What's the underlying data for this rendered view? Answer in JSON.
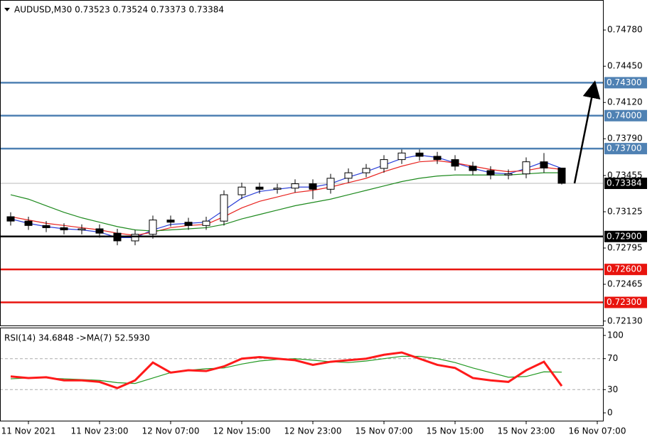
{
  "chart_data": [
    {
      "type": "candlestick",
      "title": "AUDUSD,M30  0.73523 0.73524 0.73373 0.73384",
      "xlim": [
        -0.6,
        33.32
      ],
      "ylim": [
        0.7209,
        0.7504
      ],
      "yticks": [
        {
          "value": 0.7478,
          "label": "0.74780"
        },
        {
          "value": 0.7445,
          "label": "0.74450"
        },
        {
          "value": 0.7412,
          "label": "0.74120"
        },
        {
          "value": 0.7379,
          "label": "0.73790"
        },
        {
          "value": 0.73455,
          "label": "0.73455"
        },
        {
          "value": 0.73125,
          "label": "0.73125"
        },
        {
          "value": 0.72795,
          "label": "0.72795"
        },
        {
          "value": 0.72465,
          "label": "0.72465"
        },
        {
          "value": 0.7213,
          "label": "0.72130"
        }
      ],
      "open": [
        0.7308,
        0.7304,
        0.73,
        0.7298,
        0.7296,
        0.7297,
        0.7293,
        0.7286,
        0.7292,
        0.7305,
        0.7303,
        0.73,
        0.7304,
        0.7328,
        0.7335,
        0.7333,
        0.7334,
        0.7338,
        0.7333,
        0.7343,
        0.7348,
        0.7352,
        0.736,
        0.7366,
        0.7363,
        0.736,
        0.7354,
        0.735,
        0.7346,
        0.7347,
        0.7358,
        0.73523
      ],
      "high": [
        0.7312,
        0.7308,
        0.7304,
        0.7302,
        0.7301,
        0.7301,
        0.7297,
        0.7296,
        0.7309,
        0.7309,
        0.7307,
        0.7308,
        0.7332,
        0.7339,
        0.7339,
        0.7338,
        0.7342,
        0.7342,
        0.7347,
        0.7352,
        0.7356,
        0.7364,
        0.737,
        0.737,
        0.7367,
        0.7364,
        0.7358,
        0.7354,
        0.7351,
        0.7362,
        0.7366,
        0.73524
      ],
      "low": [
        0.73,
        0.7296,
        0.7294,
        0.7292,
        0.7292,
        0.7289,
        0.7282,
        0.7282,
        0.7288,
        0.7299,
        0.7296,
        0.7296,
        0.73,
        0.7324,
        0.7329,
        0.7329,
        0.733,
        0.7324,
        0.7329,
        0.7339,
        0.7344,
        0.7348,
        0.7356,
        0.7359,
        0.7356,
        0.735,
        0.7346,
        0.7342,
        0.7342,
        0.7343,
        0.7348,
        0.73373
      ],
      "close": [
        0.7304,
        0.73,
        0.7298,
        0.7296,
        0.7297,
        0.7293,
        0.7286,
        0.7292,
        0.7305,
        0.7303,
        0.73,
        0.7304,
        0.7328,
        0.7335,
        0.7333,
        0.7334,
        0.7338,
        0.7333,
        0.7343,
        0.7348,
        0.7352,
        0.736,
        0.7366,
        0.7363,
        0.736,
        0.7354,
        0.735,
        0.7346,
        0.7347,
        0.7358,
        0.73523,
        0.73384
      ],
      "up_color": "#ffffff",
      "down_color": "#000000",
      "series": [
        {
          "color": "#2b3fd8",
          "values": [
            0.7306,
            0.7302,
            0.7299,
            0.7297,
            0.7296,
            0.7294,
            0.7289,
            0.7289,
            0.7296,
            0.7301,
            0.7302,
            0.7303,
            0.7314,
            0.7325,
            0.7331,
            0.7333,
            0.7335,
            0.7335,
            0.7338,
            0.7344,
            0.7349,
            0.7355,
            0.7361,
            0.7364,
            0.7362,
            0.7357,
            0.7352,
            0.7348,
            0.7347,
            0.7352,
            0.7358,
            0.7352
          ]
        },
        {
          "color": "#e8231f",
          "values": [
            0.7308,
            0.7305,
            0.7302,
            0.73,
            0.7298,
            0.7296,
            0.7293,
            0.7291,
            0.7294,
            0.7298,
            0.73,
            0.7301,
            0.7308,
            0.7316,
            0.7322,
            0.7326,
            0.733,
            0.7332,
            0.7335,
            0.7339,
            0.7343,
            0.7349,
            0.7354,
            0.7358,
            0.7359,
            0.7357,
            0.7354,
            0.7351,
            0.7349,
            0.735,
            0.7353,
            0.7351
          ]
        },
        {
          "color": "#1e8a1e",
          "values": [
            0.7328,
            0.7324,
            0.7318,
            0.7312,
            0.7307,
            0.7303,
            0.7299,
            0.7296,
            0.7295,
            0.7296,
            0.7297,
            0.7298,
            0.7301,
            0.7306,
            0.731,
            0.7314,
            0.7318,
            0.7321,
            0.7324,
            0.7328,
            0.7332,
            0.7336,
            0.734,
            0.7343,
            0.7345,
            0.7346,
            0.7346,
            0.7346,
            0.7346,
            0.7347,
            0.7348,
            0.7348
          ]
        }
      ],
      "levels": [
        {
          "value": 0.743,
          "label": "0.74300",
          "color": "#4f81b3"
        },
        {
          "value": 0.74,
          "label": "0.74000",
          "color": "#4f81b3"
        },
        {
          "value": 0.737,
          "label": "0.73700",
          "color": "#4f81b3"
        },
        {
          "value": 0.729,
          "label": "0.72900",
          "color": "#000000"
        },
        {
          "value": 0.726,
          "label": "0.72600",
          "color": "#e8140e"
        },
        {
          "value": 0.723,
          "label": "0.72300",
          "color": "#e8140e"
        }
      ],
      "last_price": {
        "value": 0.73384,
        "label": "0.73384"
      }
    },
    {
      "type": "line",
      "title": "RSI(14) 34.6848  ->MA(7) 52.5930",
      "xlim": [
        -0.6,
        33.32
      ],
      "ylim": [
        -10.1,
        109.2
      ],
      "yticks": [
        100,
        70,
        30,
        0
      ],
      "dashed_grid": [
        70,
        30
      ],
      "xticks": [
        {
          "value": 1,
          "label": "11 Nov 2021"
        },
        {
          "value": 5,
          "label": "11 Nov 23:00"
        },
        {
          "value": 9,
          "label": "12 Nov 07:00"
        },
        {
          "value": 13,
          "label": "12 Nov 15:00"
        },
        {
          "value": 17,
          "label": "12 Nov 23:00"
        },
        {
          "value": 21,
          "label": "15 Nov 07:00"
        },
        {
          "value": 25,
          "label": "15 Nov 15:00"
        },
        {
          "value": 29,
          "label": "15 Nov 23:00"
        },
        {
          "value": 33,
          "label": "16 Nov 07:00"
        }
      ],
      "series": [
        {
          "color": "#ff1a1a",
          "values": [
            47,
            45,
            46,
            42,
            42,
            40,
            32,
            42,
            65,
            52,
            55,
            54,
            60,
            70,
            72,
            70,
            68,
            62,
            66,
            68,
            70,
            75,
            78,
            70,
            62,
            58,
            45,
            42,
            40,
            55,
            66,
            34.6848
          ]
        },
        {
          "color": "#229922",
          "values": [
            44,
            45,
            45,
            44,
            43,
            42,
            39,
            38,
            45,
            52,
            55,
            57,
            58,
            63,
            67,
            69,
            70,
            68,
            66,
            65,
            67,
            70,
            73,
            73,
            70,
            65,
            58,
            52,
            46,
            47,
            53,
            52.593
          ]
        }
      ]
    }
  ]
}
